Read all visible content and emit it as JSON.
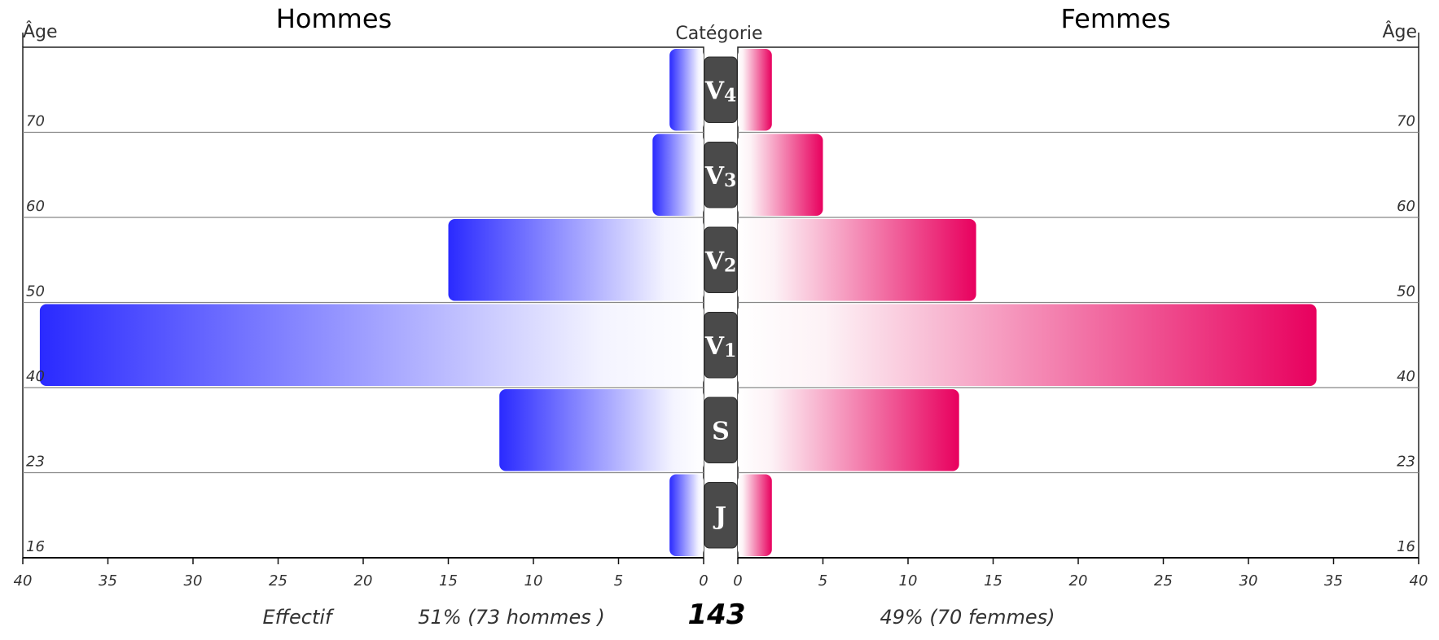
{
  "chart_data": {
    "type": "bar",
    "subtype": "population-pyramid",
    "left_title": "Hommes",
    "right_title": "Femmes",
    "center_header": "Catégorie",
    "age_label": "Âge",
    "categories": [
      "V4",
      "V3",
      "V2",
      "V1",
      "S",
      "J"
    ],
    "age_bounds": [
      "70",
      "60",
      "50",
      "40",
      "23",
      "16"
    ],
    "series": [
      {
        "name": "Hommes",
        "values": [
          2,
          3,
          15,
          39,
          12,
          2
        ],
        "color": "#2a2aff"
      },
      {
        "name": "Femmes",
        "values": [
          2,
          5,
          14,
          34,
          13,
          2
        ],
        "color": "#e8005e"
      }
    ],
    "xlim": [
      0,
      40
    ],
    "x_ticks": [
      "40",
      "35",
      "30",
      "25",
      "20",
      "15",
      "10",
      "5",
      "0"
    ],
    "x_ticks_right": [
      "0",
      "5",
      "10",
      "15",
      "20",
      "25",
      "30",
      "35",
      "40"
    ],
    "footer": {
      "axis_label": "Effectif",
      "men_summary": "51% (73 hommes )",
      "total": "143",
      "women_summary": "49% (70 femmes)"
    }
  }
}
